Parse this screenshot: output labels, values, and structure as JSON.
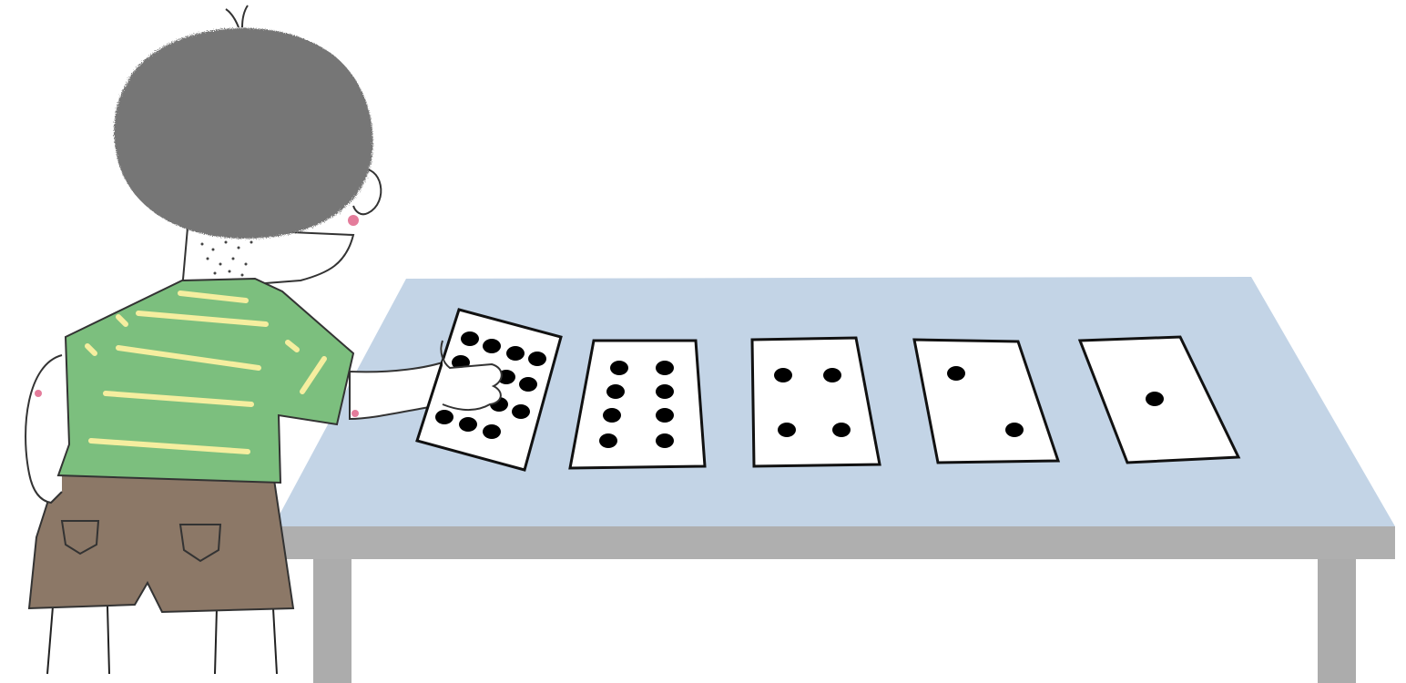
{
  "scene": {
    "background_color": "#ffffff",
    "table": {
      "top_color": "#c3d4e6",
      "edge_color": "#afafaf",
      "leg_color": "#acacac"
    },
    "child": {
      "hair_color": "#767676",
      "shirt_color": "#7cbf7e",
      "stripe_color": "#f5ee9f",
      "shorts_color": "#8c7867",
      "cheek_color": "#e47c9b"
    },
    "cards": [
      {
        "dots": 12
      },
      {
        "dots": 8
      },
      {
        "dots": 4
      },
      {
        "dots": 2
      },
      {
        "dots": 1
      }
    ]
  }
}
